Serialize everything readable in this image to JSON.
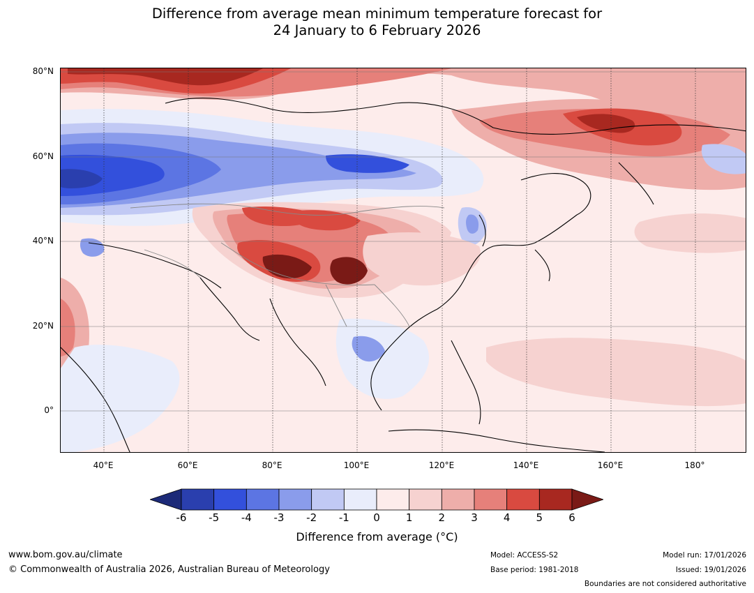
{
  "title_line1": "Difference from average mean minimum temperature forecast for",
  "title_line2": "24 January to 6 February 2026",
  "lat_labels": [
    "80°N",
    "60°N",
    "40°N",
    "20°N",
    "0°"
  ],
  "lon_labels": [
    "40°E",
    "60°E",
    "80°E",
    "100°E",
    "120°E",
    "140°E",
    "160°E",
    "180°"
  ],
  "colorbar": {
    "ticks": [
      "-6",
      "-5",
      "-4",
      "-3",
      "-2",
      "-1",
      "0",
      "1",
      "2",
      "3",
      "4",
      "5",
      "6"
    ],
    "colors": [
      "#1c2a78",
      "#2a3fae",
      "#3350dc",
      "#5c75e3",
      "#8a9ceb",
      "#c1c9f4",
      "#e9edfb",
      "#fdeceb",
      "#f6d2d0",
      "#eeaeaa",
      "#e6807a",
      "#d94a40",
      "#a82820",
      "#7a1a16"
    ],
    "label": "Difference from average (°C)"
  },
  "footer": {
    "website": "www.bom.gov.au/climate",
    "copyright": "© Commonwealth of Australia 2026, Australian Bureau of Meteorology",
    "model": "Model: ACCESS-S2",
    "base_period": "Base period: 1981-2018",
    "model_run": "Model run: 17/01/2026",
    "issued": "Issued: 19/01/2026",
    "disclaimer": "Boundaries are not considered authoritative"
  }
}
